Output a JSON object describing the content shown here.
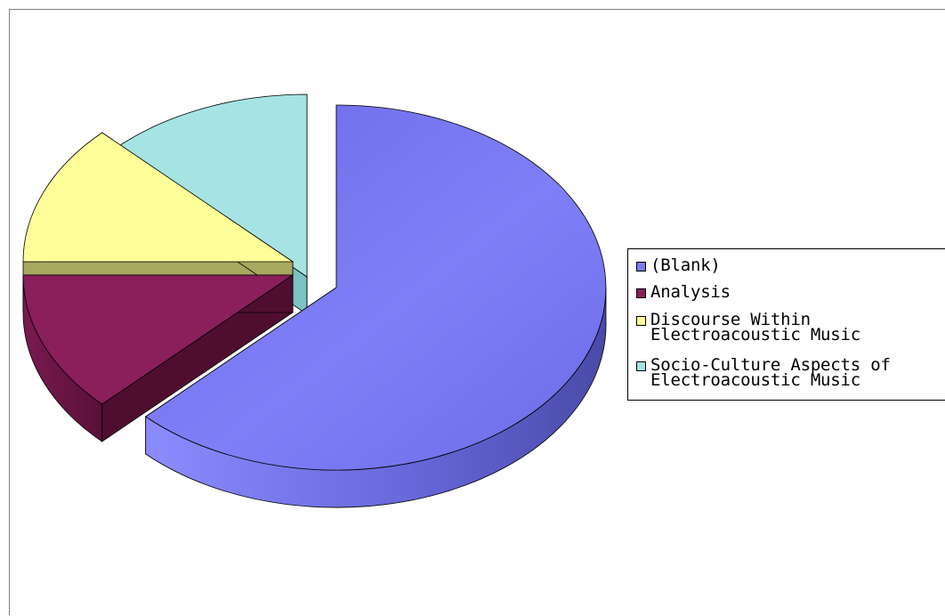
{
  "chart_data": {
    "type": "pie",
    "style": "3d-exploded",
    "categories": [
      "(Blank)",
      "Analysis",
      "Discourse Within Electroacoustic Music",
      "Socio-Culture Aspects of Electroacoustic Music"
    ],
    "legend_labels": [
      "(Blank)",
      "Analysis",
      "Discourse Within\nElectroacoustic Music",
      "Socio-Culture Aspects of\nElectroacoustic Music"
    ],
    "values": [
      62.5,
      12.5,
      12.5,
      12.5
    ],
    "colors": [
      "#7b7bf0",
      "#8a1f5c",
      "#ffff99",
      "#a6e3e3"
    ],
    "legend_position": "right"
  }
}
